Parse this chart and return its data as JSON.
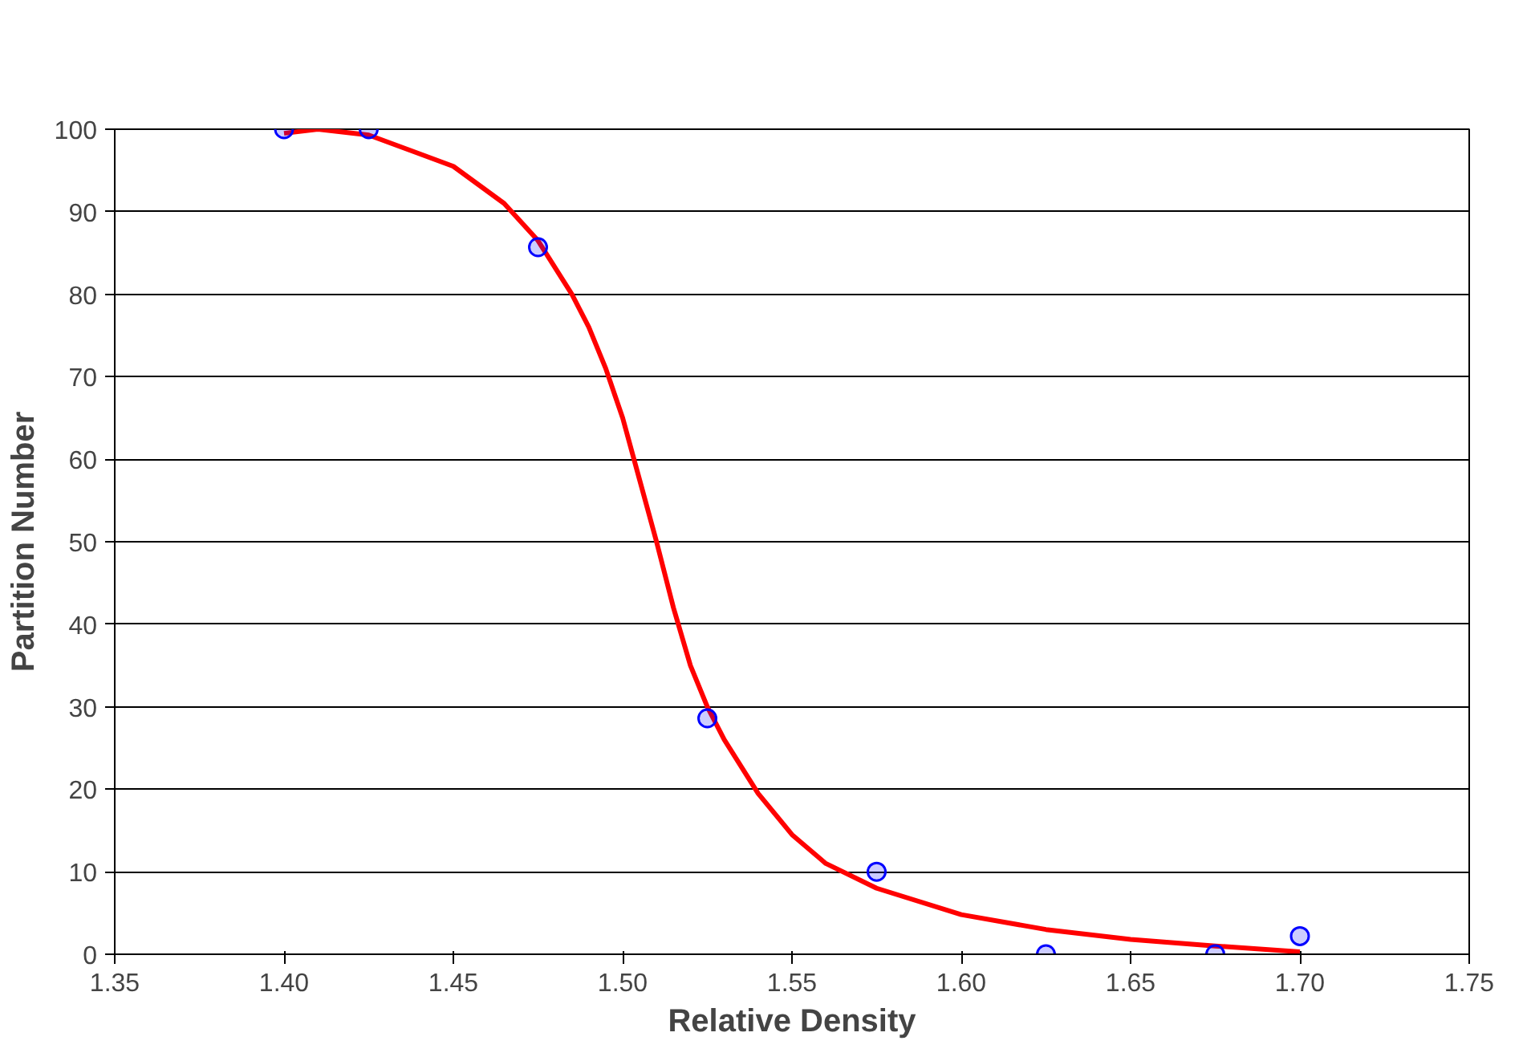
{
  "chart_data": {
    "type": "scatter",
    "xlabel": "Relative Density",
    "ylabel": "Partition Number",
    "xlim": [
      1.35,
      1.75
    ],
    "xticks": [
      {
        "value": 1.35,
        "label": "1.35"
      },
      {
        "value": 1.4,
        "label": "1.40"
      },
      {
        "value": 1.45,
        "label": "1.45"
      },
      {
        "value": 1.5,
        "label": "1.50"
      },
      {
        "value": 1.55,
        "label": "1.55"
      },
      {
        "value": 1.6,
        "label": "1.60"
      },
      {
        "value": 1.65,
        "label": "1.65"
      },
      {
        "value": 1.7,
        "label": "1.70"
      },
      {
        "value": 1.75,
        "label": "1.75"
      }
    ],
    "ylim": [
      0,
      100
    ],
    "yticks": [
      0,
      10,
      20,
      30,
      40,
      50,
      60,
      70,
      80,
      90,
      100
    ],
    "grid": "y",
    "series": [
      {
        "marker": "circle",
        "color": "#0000ff",
        "x": [
          1.4,
          1.425,
          1.475,
          1.525,
          1.575,
          1.625,
          1.675,
          1.7
        ],
        "values": [
          100,
          100,
          85.7,
          28.6,
          10,
          0,
          0,
          2.2
        ]
      },
      {
        "type": "line",
        "color": "#ff0000",
        "line_style": "solid",
        "x": [
          1.4,
          1.41,
          1.425,
          1.45,
          1.465,
          1.475,
          1.485,
          1.49,
          1.495,
          1.5,
          1.505,
          1.51,
          1.515,
          1.52,
          1.525,
          1.53,
          1.54,
          1.55,
          1.56,
          1.575,
          1.6,
          1.625,
          1.65,
          1.675,
          1.7
        ],
        "values": [
          99.5,
          100,
          99.3,
          95.5,
          91,
          86.5,
          80,
          76,
          71,
          65,
          57.5,
          50,
          42,
          35,
          30,
          26,
          19.5,
          14.5,
          11,
          8,
          4.8,
          3,
          1.8,
          1,
          0.3
        ]
      }
    ]
  }
}
